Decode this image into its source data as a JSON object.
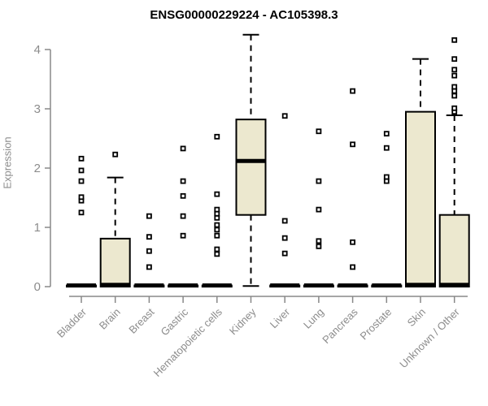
{
  "window": {
    "title": "ENSG00000229224 - AC105398.3"
  },
  "chart_data": {
    "type": "boxplot",
    "title": "ENSG00000229224 - AC105398.3",
    "xlabel": "",
    "ylabel": "Expression",
    "ylim": [
      0,
      4.3
    ],
    "yticks": [
      0,
      1,
      2,
      3,
      4
    ],
    "grid": false,
    "legend": "none",
    "box_fill": "#ece8cf",
    "box_stroke": "#000000",
    "axis_color": "#888888",
    "tick_label_color": "#8c8c8c",
    "title_color": "#000000",
    "categories": [
      "Bladder",
      "Brain",
      "Breast",
      "Gastric",
      "Hematopoietic cells",
      "Kidney",
      "Liver",
      "Lung",
      "Pancreas",
      "Prostate",
      "Skin",
      "Unknown / Other"
    ],
    "boxes": [
      {
        "category": "Bladder",
        "whisker_low": 0,
        "q1": 0,
        "median": 0.02,
        "q3": 0.02,
        "whisker_high": 0.02,
        "outliers": [
          1.25,
          1.45,
          1.51,
          1.78,
          1.96,
          2.16
        ]
      },
      {
        "category": "Brain",
        "whisker_low": 0,
        "q1": 0,
        "median": 0.03,
        "q3": 0.81,
        "whisker_high": 1.84,
        "outliers": [
          2.23
        ]
      },
      {
        "category": "Breast",
        "whisker_low": 0,
        "q1": 0,
        "median": 0.02,
        "q3": 0.02,
        "whisker_high": 0.02,
        "outliers": [
          0.33,
          0.6,
          0.84,
          1.19
        ]
      },
      {
        "category": "Gastric",
        "whisker_low": 0,
        "q1": 0,
        "median": 0.02,
        "q3": 0.02,
        "whisker_high": 0.02,
        "outliers": [
          0.86,
          1.19,
          1.53,
          1.78,
          2.33
        ]
      },
      {
        "category": "Hematopoietic cells",
        "whisker_low": 0,
        "q1": 0,
        "median": 0.02,
        "q3": 0.02,
        "whisker_high": 0.02,
        "outliers": [
          0.55,
          0.63,
          0.86,
          0.96,
          1.04,
          1.16,
          1.23,
          1.3,
          1.56,
          2.53
        ]
      },
      {
        "category": "Kidney",
        "whisker_low": 0.01,
        "q1": 1.21,
        "median": 2.12,
        "q3": 2.82,
        "whisker_high": 4.25,
        "outliers": []
      },
      {
        "category": "Liver",
        "whisker_low": 0,
        "q1": 0,
        "median": 0.02,
        "q3": 0.02,
        "whisker_high": 0.02,
        "outliers": [
          0.56,
          0.82,
          1.11,
          2.88
        ]
      },
      {
        "category": "Lung",
        "whisker_low": 0,
        "q1": 0,
        "median": 0.02,
        "q3": 0.02,
        "whisker_high": 0.02,
        "outliers": [
          0.68,
          0.77,
          1.3,
          1.78,
          2.62
        ]
      },
      {
        "category": "Pancreas",
        "whisker_low": 0,
        "q1": 0,
        "median": 0.02,
        "q3": 0.02,
        "whisker_high": 0.02,
        "outliers": [
          0.33,
          0.75,
          2.4,
          3.3
        ]
      },
      {
        "category": "Prostate",
        "whisker_low": 0,
        "q1": 0,
        "median": 0.02,
        "q3": 0.02,
        "whisker_high": 0.02,
        "outliers": [
          1.78,
          1.85,
          2.34,
          2.58
        ]
      },
      {
        "category": "Skin",
        "whisker_low": 0,
        "q1": 0,
        "median": 0.03,
        "q3": 2.95,
        "whisker_high": 3.84,
        "outliers": []
      },
      {
        "category": "Unknown / Other",
        "whisker_low": 0,
        "q1": 0,
        "median": 0.03,
        "q3": 1.21,
        "whisker_high": 2.89,
        "outliers": [
          2.95,
          3.01,
          3.22,
          3.3,
          3.37,
          3.56,
          3.66,
          3.84,
          4.16
        ]
      }
    ]
  }
}
